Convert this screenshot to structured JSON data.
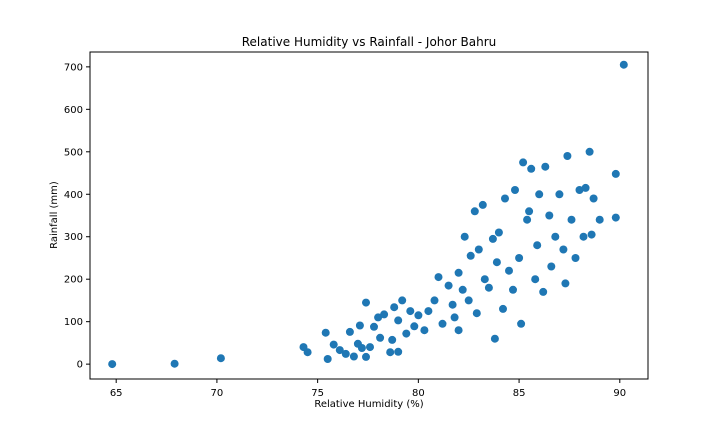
{
  "chart_data": {
    "type": "scatter",
    "title": "Relative Humidity vs Rainfall - Johor Bahru",
    "xlabel": "Relative Humidity (%)",
    "ylabel": "Rainfall (mm)",
    "xlim": [
      63.7,
      91.4
    ],
    "ylim": [
      -35,
      735
    ],
    "x_ticks": [
      65,
      70,
      75,
      80,
      85,
      90
    ],
    "y_ticks": [
      0,
      100,
      200,
      300,
      400,
      500,
      600,
      700
    ],
    "grid": false,
    "legend": "none",
    "marker_color": "#1f77b4",
    "series": [
      {
        "points": [
          [
            64.8,
            0
          ],
          [
            67.9,
            1
          ],
          [
            70.2,
            14
          ],
          [
            74.3,
            40
          ],
          [
            74.5,
            28
          ],
          [
            75.4,
            74
          ],
          [
            75.5,
            12
          ],
          [
            75.8,
            46
          ],
          [
            76.1,
            33
          ],
          [
            76.4,
            24
          ],
          [
            76.6,
            76
          ],
          [
            76.8,
            18
          ],
          [
            77.0,
            48
          ],
          [
            77.1,
            91
          ],
          [
            77.2,
            38
          ],
          [
            77.4,
            17
          ],
          [
            77.4,
            145
          ],
          [
            77.6,
            40
          ],
          [
            77.8,
            88
          ],
          [
            78.0,
            110
          ],
          [
            78.1,
            62
          ],
          [
            78.3,
            117
          ],
          [
            78.6,
            28
          ],
          [
            78.7,
            57
          ],
          [
            78.8,
            134
          ],
          [
            79.0,
            103
          ],
          [
            79.0,
            29
          ],
          [
            79.2,
            150
          ],
          [
            79.4,
            72
          ],
          [
            79.6,
            125
          ],
          [
            79.8,
            89
          ],
          [
            80.0,
            115
          ],
          [
            80.3,
            80
          ],
          [
            80.5,
            125
          ],
          [
            80.8,
            150
          ],
          [
            81.0,
            205
          ],
          [
            81.2,
            95
          ],
          [
            81.5,
            185
          ],
          [
            81.7,
            140
          ],
          [
            81.8,
            110
          ],
          [
            82.0,
            215
          ],
          [
            82.0,
            80
          ],
          [
            82.2,
            175
          ],
          [
            82.3,
            300
          ],
          [
            82.5,
            150
          ],
          [
            82.6,
            255
          ],
          [
            82.8,
            360
          ],
          [
            82.9,
            120
          ],
          [
            83.0,
            270
          ],
          [
            83.2,
            375
          ],
          [
            83.3,
            200
          ],
          [
            83.5,
            180
          ],
          [
            83.7,
            295
          ],
          [
            83.8,
            60
          ],
          [
            83.9,
            240
          ],
          [
            84.0,
            310
          ],
          [
            84.2,
            130
          ],
          [
            84.3,
            390
          ],
          [
            84.5,
            220
          ],
          [
            84.7,
            175
          ],
          [
            84.8,
            410
          ],
          [
            85.0,
            250
          ],
          [
            85.1,
            95
          ],
          [
            85.2,
            475
          ],
          [
            85.4,
            340
          ],
          [
            85.5,
            360
          ],
          [
            85.6,
            460
          ],
          [
            85.8,
            200
          ],
          [
            85.9,
            280
          ],
          [
            86.0,
            400
          ],
          [
            86.2,
            170
          ],
          [
            86.3,
            465
          ],
          [
            86.5,
            350
          ],
          [
            86.6,
            230
          ],
          [
            86.8,
            300
          ],
          [
            87.0,
            400
          ],
          [
            87.2,
            270
          ],
          [
            87.3,
            190
          ],
          [
            87.4,
            490
          ],
          [
            87.6,
            340
          ],
          [
            87.8,
            250
          ],
          [
            88.0,
            410
          ],
          [
            88.2,
            300
          ],
          [
            88.3,
            415
          ],
          [
            88.5,
            500
          ],
          [
            88.6,
            305
          ],
          [
            88.7,
            390
          ],
          [
            89.0,
            340
          ],
          [
            89.8,
            345
          ],
          [
            89.8,
            448
          ],
          [
            90.2,
            705
          ]
        ]
      }
    ]
  }
}
